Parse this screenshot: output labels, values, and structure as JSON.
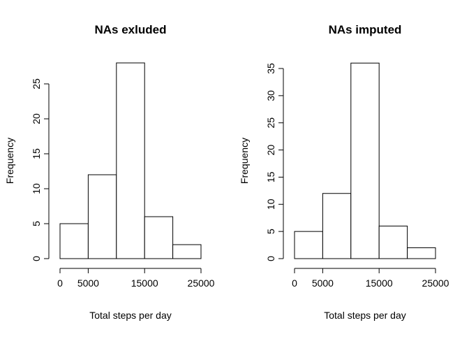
{
  "chart_data": [
    {
      "type": "bar",
      "title": "NAs exluded",
      "xlabel": "Total steps per day",
      "ylabel": "Frequency",
      "bins": [
        [
          0,
          5000
        ],
        [
          5000,
          10000
        ],
        [
          10000,
          15000
        ],
        [
          15000,
          20000
        ],
        [
          20000,
          25000
        ]
      ],
      "values": [
        5,
        12,
        28,
        6,
        2
      ],
      "xticks": [
        0,
        5000,
        15000,
        25000
      ],
      "xtick_labels": [
        "0",
        "5000",
        "15000",
        "25000"
      ],
      "yticks": [
        0,
        5,
        10,
        15,
        20,
        25
      ],
      "ytick_labels": [
        "0",
        "5",
        "10",
        "15",
        "20",
        "25"
      ],
      "xlim": [
        0,
        25000
      ],
      "ylim": [
        0,
        25
      ],
      "grid": false,
      "colors": {
        "bar_fill": "#ffffff",
        "bar_stroke": "#000000"
      }
    },
    {
      "type": "bar",
      "title": "NAs imputed",
      "xlabel": "Total steps per day",
      "ylabel": "Frequency",
      "bins": [
        [
          0,
          5000
        ],
        [
          5000,
          10000
        ],
        [
          10000,
          15000
        ],
        [
          15000,
          20000
        ],
        [
          20000,
          25000
        ]
      ],
      "values": [
        5,
        12,
        36,
        6,
        2
      ],
      "xticks": [
        0,
        5000,
        15000,
        25000
      ],
      "xtick_labels": [
        "0",
        "5000",
        "15000",
        "25000"
      ],
      "yticks": [
        0,
        5,
        10,
        15,
        20,
        25,
        30,
        35
      ],
      "ytick_labels": [
        "0",
        "5",
        "10",
        "15",
        "20",
        "25",
        "30",
        "35"
      ],
      "xlim": [
        0,
        25000
      ],
      "ylim": [
        0,
        35
      ],
      "grid": false,
      "colors": {
        "bar_fill": "#ffffff",
        "bar_stroke": "#000000"
      }
    }
  ]
}
